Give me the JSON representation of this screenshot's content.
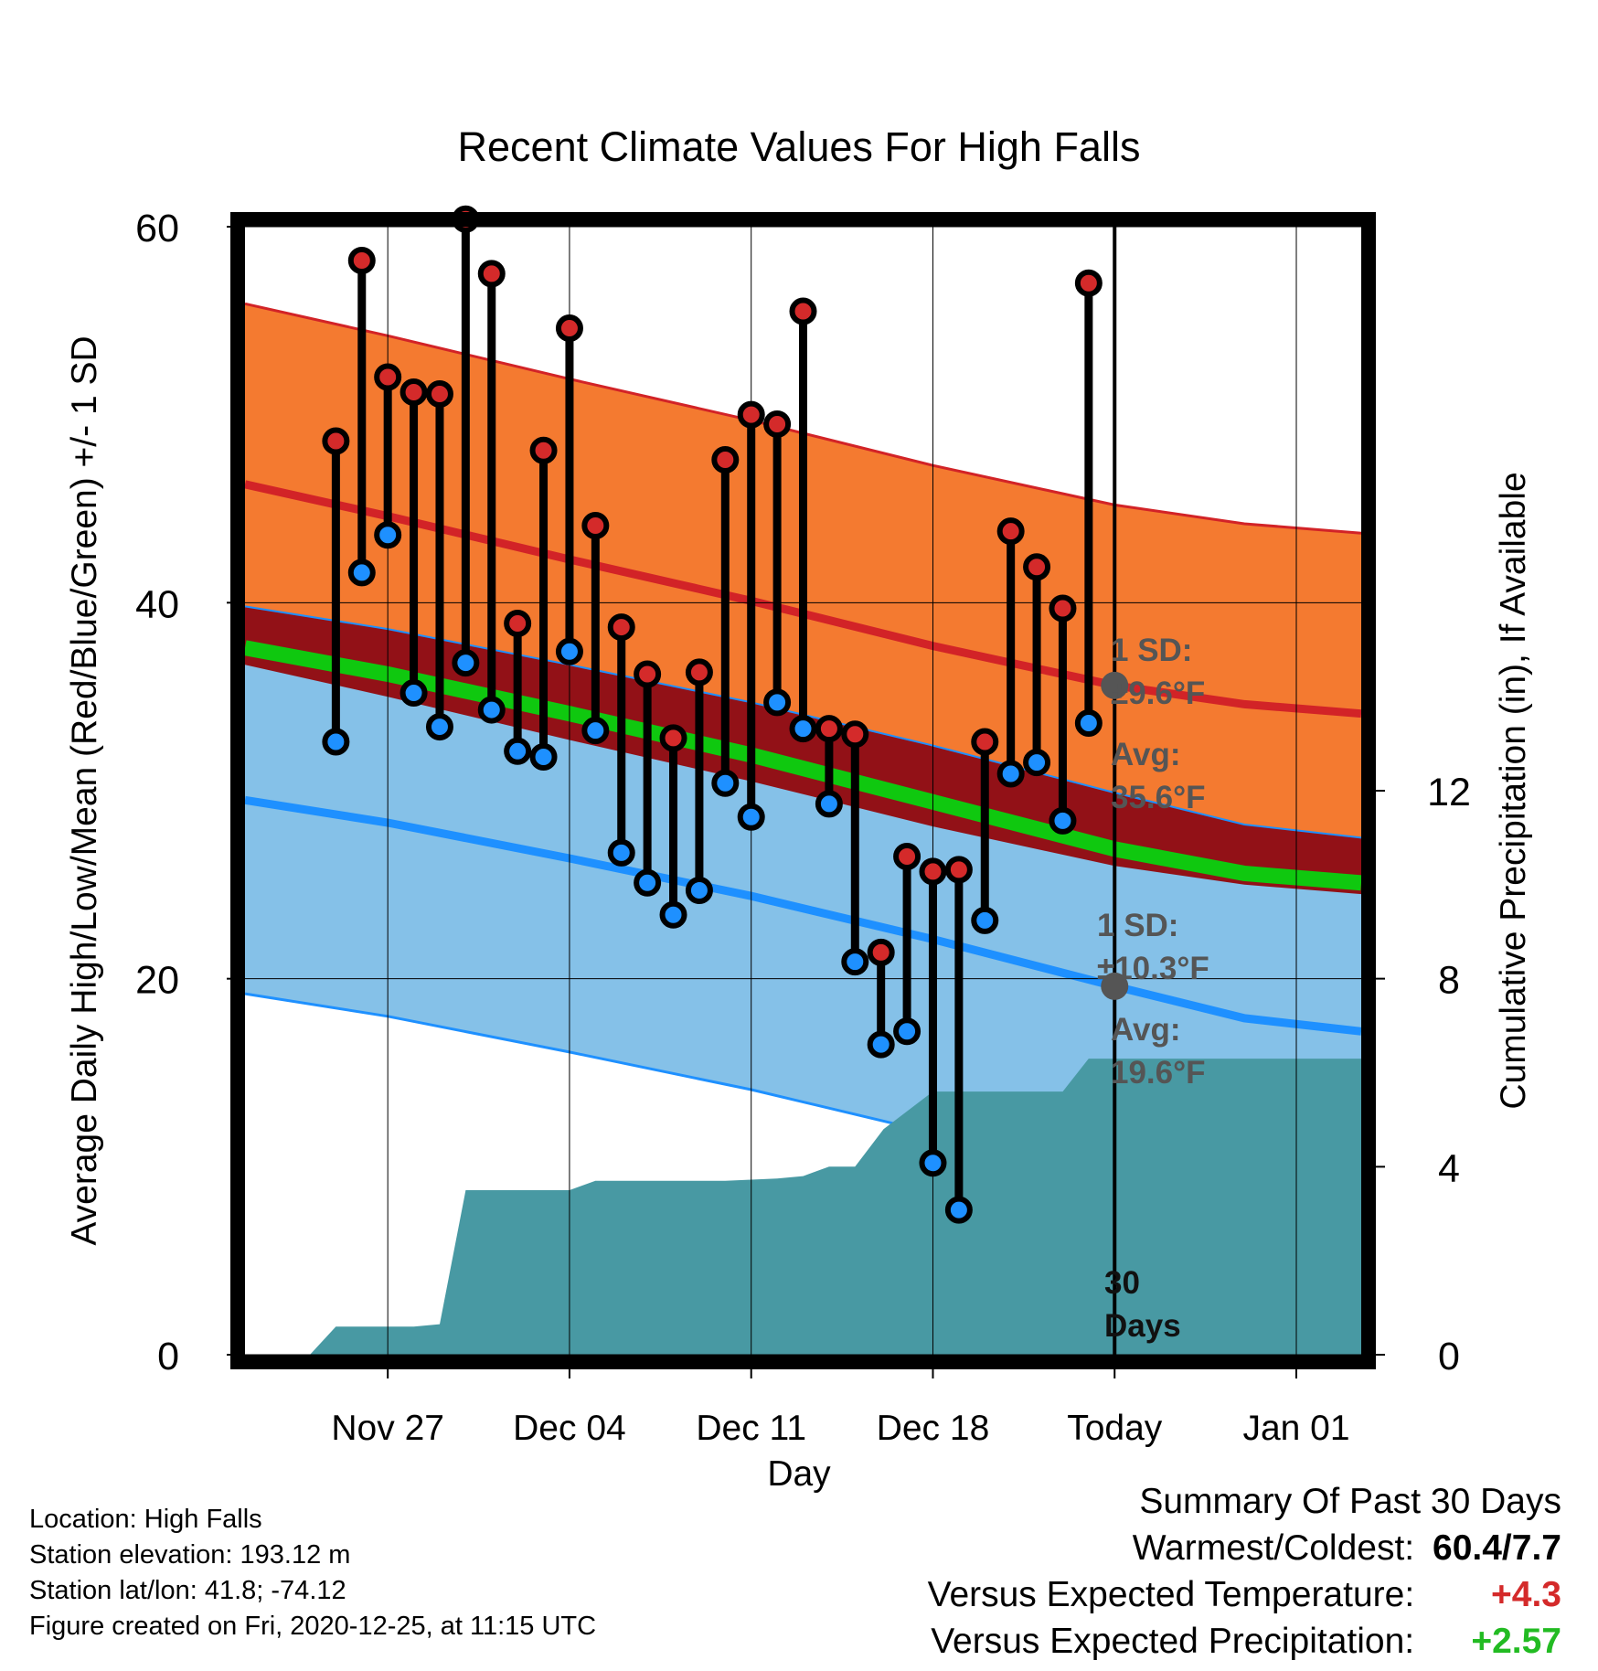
{
  "chart_data": {
    "type": "line",
    "title": "Recent Climate Values For High Falls",
    "xlabel": "Day",
    "ylabel": "Average Daily High/Low/Mean (Red/Blue/Green) +/- 1 SD",
    "y2label": "Cumulative Precipitation (in), If Available",
    "ylim": [
      0,
      60
    ],
    "y2lim": [
      0,
      24
    ],
    "yticks": [
      0,
      20,
      40,
      60
    ],
    "y2ticks": [
      0,
      4,
      8,
      12
    ],
    "grid": true,
    "x_range_days": [
      -33.5,
      9.5
    ],
    "x_ticks": [
      {
        "day": -28,
        "label": "Nov 27"
      },
      {
        "day": -21,
        "label": "Dec 04"
      },
      {
        "day": -14,
        "label": "Dec 11"
      },
      {
        "day": -7,
        "label": "Dec 18"
      },
      {
        "day": 0,
        "label": "Today"
      },
      {
        "day": 7,
        "label": "Jan 01"
      }
    ],
    "normals": {
      "day": [
        -33.5,
        -28,
        -21,
        -14,
        -7,
        0,
        5,
        9.5
      ],
      "high_avg": [
        46.3,
        44.6,
        42.3,
        40.1,
        37.7,
        35.6,
        34.6,
        34.1
      ],
      "high_sd": 9.6,
      "low_avg": [
        29.5,
        28.3,
        26.4,
        24.4,
        22.1,
        19.6,
        17.9,
        17.2
      ],
      "low_sd": 10.3,
      "mean_avg": [
        37.6,
        36.2,
        34.1,
        31.9,
        29.4,
        26.9,
        25.6,
        25.1
      ]
    },
    "series": [
      {
        "name": "High",
        "day": [
          -30,
          -29,
          -28,
          -27,
          -26,
          -25,
          -24,
          -23,
          -22,
          -21,
          -20,
          -19,
          -18,
          -17,
          -16,
          -15,
          -14,
          -13,
          -12,
          -11,
          -10,
          -9,
          -8,
          -7,
          -6,
          -5,
          -4,
          -3,
          -2,
          -1
        ],
        "values": [
          48.6,
          58.2,
          52.0,
          51.2,
          51.1,
          60.4,
          57.5,
          38.9,
          48.1,
          54.6,
          44.1,
          38.7,
          36.2,
          32.8,
          36.3,
          47.6,
          50.0,
          49.5,
          55.5,
          33.3,
          33.0,
          21.4,
          26.5,
          25.7,
          25.8,
          32.6,
          43.8,
          41.9,
          39.7,
          57.0
        ]
      },
      {
        "name": "Low",
        "day": [
          -30,
          -29,
          -28,
          -27,
          -26,
          -25,
          -24,
          -23,
          -22,
          -21,
          -20,
          -19,
          -18,
          -17,
          -16,
          -15,
          -14,
          -13,
          -12,
          -11,
          -10,
          -9,
          -8,
          -7,
          -6,
          -5,
          -4,
          -3,
          -2,
          -1
        ],
        "values": [
          32.6,
          41.6,
          43.6,
          35.2,
          33.4,
          36.8,
          34.3,
          32.1,
          31.8,
          37.4,
          33.2,
          26.7,
          25.1,
          23.4,
          24.7,
          30.4,
          28.6,
          34.7,
          33.3,
          29.3,
          20.9,
          16.5,
          17.2,
          10.2,
          7.7,
          23.1,
          30.9,
          31.5,
          28.4,
          33.6
        ]
      },
      {
        "name": "Precipitation",
        "day": [
          -33.5,
          -31,
          -30,
          -27,
          -26,
          -25,
          -21,
          -20,
          -15,
          -13,
          -12,
          -11,
          -10,
          -8.9,
          -7,
          -2,
          -1,
          9.5
        ],
        "values": [
          0,
          0,
          0.6,
          0.6,
          0.65,
          3.5,
          3.5,
          3.7,
          3.7,
          3.75,
          3.8,
          4.0,
          4.0,
          4.8,
          5.6,
          5.6,
          6.3,
          6.3
        ]
      }
    ],
    "annotations": {
      "high_sd_label": [
        "1 SD:",
        "±9.6°F"
      ],
      "high_avg_label": [
        "Avg:",
        "35.6°F"
      ],
      "low_sd_label": [
        "1 SD:",
        "±10.3°F"
      ],
      "low_avg_label": [
        "Avg:",
        "19.6°F"
      ],
      "days_label": [
        "30",
        "Days"
      ]
    },
    "colors": {
      "high_band": "#f47a30",
      "high_line": "#d22327",
      "low_band": "#85c1e8",
      "low_line": "#1e90ff",
      "mean_line": "#0fc80f",
      "mean_band": "#921117",
      "precip": "#4899a3",
      "high_marker": "#d42a2a",
      "low_marker": "#1e90ff",
      "annotation": "#555555"
    }
  },
  "footer": {
    "location": "Location: High Falls",
    "elevation": "Station elevation: 193.12 m",
    "latlon": "Station lat/lon: 41.8; -74.12",
    "created": "Figure created on Fri, 2020-12-25, at 11:15 UTC"
  },
  "summary": {
    "title": "Summary Of Past 30 Days",
    "warmest_label": "Warmest/Coldest:",
    "warmest_value": "60.4/7.7",
    "temp_label": "Versus Expected Temperature:",
    "temp_value": "+4.3",
    "precip_label": "Versus Expected Precipitation:",
    "precip_value": "+2.57"
  }
}
